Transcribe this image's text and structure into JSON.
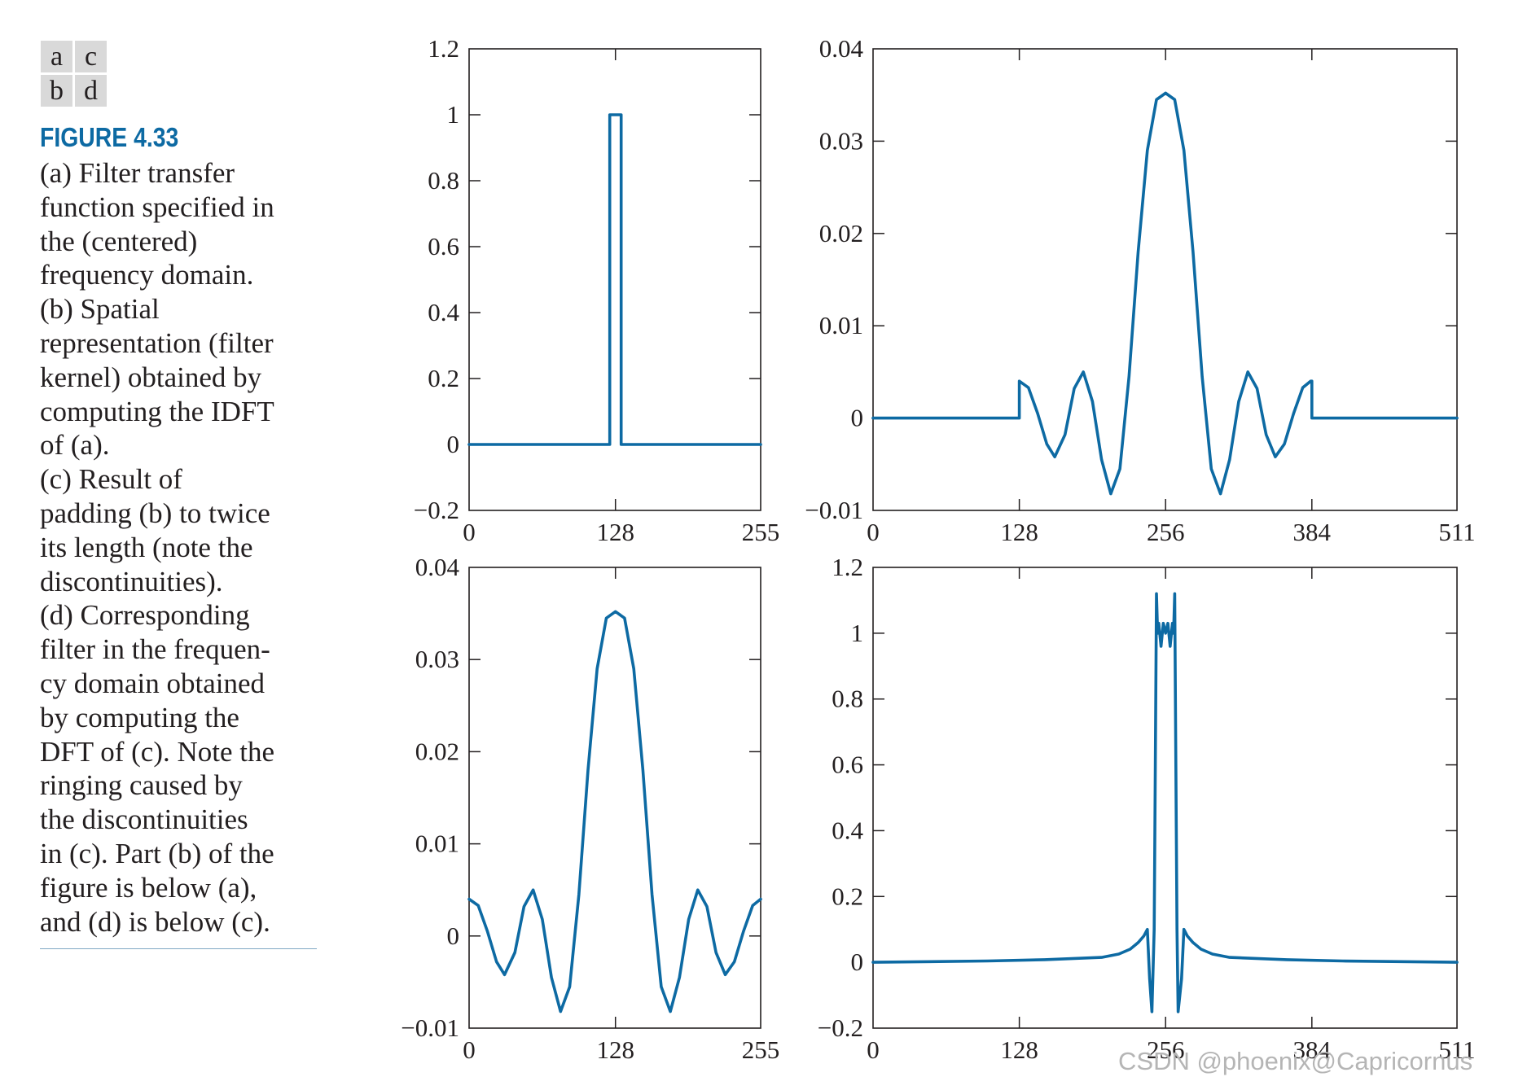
{
  "panel_key": [
    "a",
    "c",
    "b",
    "d"
  ],
  "figure_label": "FIGURE 4.33",
  "caption_lines": [
    "(a) Filter transfer",
    "function specified in",
    "the (centered)",
    "frequency domain.",
    "(b) Spatial",
    "representation (filter",
    "kernel) obtained by",
    "computing the IDFT",
    "of (a).",
    "(c) Result of",
    "padding (b) to twice",
    "its length (note the",
    "discontinuities).",
    "(d) Corresponding",
    "filter in the frequen-",
    "cy domain obtained",
    "by computing the",
    "DFT of (c). Note the",
    "ringing caused by",
    "the discontinuities",
    "in (c). Part (b) of the",
    "figure is below (a),",
    "and (d) is below (c)."
  ],
  "watermark": "CSDN @phoenix@Capricornus",
  "line_color": "#0d6aa3",
  "chart_data": [
    {
      "panel": "a",
      "type": "line",
      "xlim": [
        0,
        255
      ],
      "ylim": [
        -0.2,
        1.2
      ],
      "xticks": [
        0,
        128,
        255
      ],
      "xticklabels": [
        "0",
        "128",
        "255"
      ],
      "yticks": [
        -0.2,
        0,
        0.2,
        0.4,
        0.6,
        0.8,
        1,
        1.2
      ],
      "yticklabels": [
        "−0.2",
        "0",
        "0.2",
        "0.4",
        "0.6",
        "0.8",
        "1",
        "1.2"
      ],
      "series": [
        {
          "x": [
            0,
            123,
            123,
            133,
            133,
            255
          ],
          "y": [
            0,
            0,
            1,
            1,
            0,
            0
          ]
        }
      ]
    },
    {
      "panel": "b",
      "type": "line",
      "xlim": [
        0,
        255
      ],
      "ylim": [
        -0.01,
        0.04
      ],
      "xticks": [
        0,
        128,
        255
      ],
      "xticklabels": [
        "0",
        "128",
        "255"
      ],
      "yticks": [
        -0.01,
        0,
        0.01,
        0.02,
        0.03,
        0.04
      ],
      "yticklabels": [
        "−0.01",
        "0",
        "0.01",
        "0.02",
        "0.03",
        "0.04"
      ],
      "series": [
        {
          "x": [
            0,
            8,
            16,
            24,
            31,
            40,
            48,
            56,
            64,
            72,
            80,
            88,
            96,
            104,
            112,
            120,
            128,
            136,
            144,
            152,
            160,
            168,
            176,
            184,
            192,
            200,
            208,
            216,
            224,
            232,
            240,
            248,
            255
          ],
          "y": [
            0.004,
            0.0033,
            0.0005,
            -0.0028,
            -0.0042,
            -0.0018,
            0.0032,
            0.005,
            0.0018,
            -0.0045,
            -0.0082,
            -0.0055,
            0.0045,
            0.018,
            0.029,
            0.0345,
            0.0352,
            0.0345,
            0.029,
            0.018,
            0.0045,
            -0.0055,
            -0.0082,
            -0.0045,
            0.0018,
            0.005,
            0.0032,
            -0.0018,
            -0.0042,
            -0.0028,
            0.0005,
            0.0033,
            0.004
          ]
        }
      ]
    },
    {
      "panel": "c",
      "type": "line",
      "xlim": [
        0,
        511
      ],
      "ylim": [
        -0.01,
        0.04
      ],
      "xticks": [
        0,
        128,
        256,
        384,
        511
      ],
      "xticklabels": [
        "0",
        "128",
        "256",
        "384",
        "511"
      ],
      "yticks": [
        -0.01,
        0,
        0.01,
        0.02,
        0.03,
        0.04
      ],
      "yticklabels": [
        "−0.01",
        "0",
        "0.01",
        "0.02",
        "0.03",
        "0.04"
      ],
      "series": [
        {
          "x": [
            0,
            128,
            128,
            136,
            144,
            152,
            159,
            168,
            176,
            184,
            192,
            200,
            208,
            216,
            224,
            232,
            240,
            248,
            256,
            264,
            272,
            280,
            288,
            296,
            304,
            312,
            320,
            328,
            336,
            344,
            352,
            360,
            368,
            376,
            383,
            384,
            384,
            511
          ],
          "y": [
            0,
            0,
            0.004,
            0.0033,
            0.0005,
            -0.0028,
            -0.0042,
            -0.0018,
            0.0032,
            0.005,
            0.0018,
            -0.0045,
            -0.0082,
            -0.0055,
            0.0045,
            0.018,
            0.029,
            0.0345,
            0.0352,
            0.0345,
            0.029,
            0.018,
            0.0045,
            -0.0055,
            -0.0082,
            -0.0045,
            0.0018,
            0.005,
            0.0032,
            -0.0018,
            -0.0042,
            -0.0028,
            0.0005,
            0.0033,
            0.004,
            0.004,
            0,
            0
          ]
        }
      ]
    },
    {
      "panel": "d",
      "type": "line",
      "xlim": [
        0,
        511
      ],
      "ylim": [
        -0.2,
        1.2
      ],
      "xticks": [
        0,
        128,
        256,
        384,
        511
      ],
      "xticklabels": [
        "0",
        "128",
        "256",
        "384",
        "511"
      ],
      "yticks": [
        -0.2,
        0,
        0.2,
        0.4,
        0.6,
        0.8,
        1,
        1.2
      ],
      "yticklabels": [
        "−0.2",
        "0",
        "0.2",
        "0.4",
        "0.6",
        "0.8",
        "1",
        "1.2"
      ],
      "series": [
        {
          "x": [
            0,
            100,
            150,
            200,
            215,
            225,
            232,
            237,
            240,
            242,
            244,
            246,
            247,
            248,
            249,
            250,
            252,
            254,
            256,
            258,
            260,
            262,
            263,
            264,
            265,
            266,
            267,
            270,
            272,
            275,
            280,
            287,
            297,
            312,
            362,
            411,
            511
          ],
          "y": [
            0,
            0.004,
            0.008,
            0.015,
            0.025,
            0.04,
            0.06,
            0.08,
            0.1,
            -0.05,
            -0.15,
            0.1,
            0.6,
            1.12,
            1.0,
            1.03,
            0.96,
            1.03,
            1.0,
            1.03,
            0.96,
            1.03,
            1.0,
            1.12,
            0.6,
            0.1,
            -0.15,
            -0.05,
            0.1,
            0.08,
            0.06,
            0.04,
            0.025,
            0.015,
            0.008,
            0.004,
            0
          ]
        }
      ]
    }
  ]
}
